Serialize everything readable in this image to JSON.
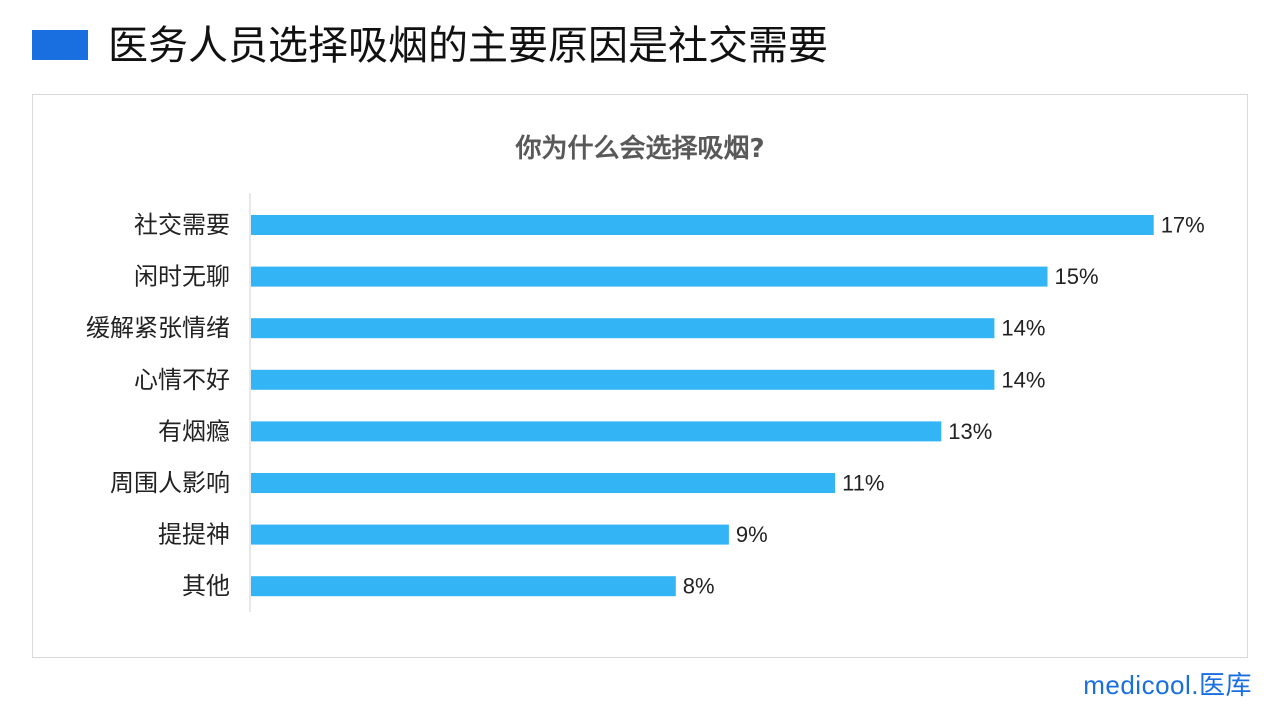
{
  "header": {
    "title": "医务人员选择吸烟的主要原因是社交需要",
    "accent_color": "#1a6fe0"
  },
  "chart_data": {
    "type": "bar",
    "orientation": "horizontal",
    "title": "你为什么会选择吸烟?",
    "xlabel": "",
    "ylabel": "",
    "categories": [
      "社交需要",
      "闲时无聊",
      "缓解紧张情绪",
      "心情不好",
      "有烟瘾",
      "周围人影响",
      "提提神",
      "其他"
    ],
    "values": [
      17,
      15,
      14,
      14,
      13,
      11,
      9,
      8
    ],
    "value_labels": [
      "17%",
      "15%",
      "14%",
      "14%",
      "13%",
      "11%",
      "9%",
      "8%"
    ],
    "unit": "%",
    "bar_color": "#33b5f5",
    "grid": false,
    "legend": "none"
  },
  "footer": {
    "brand": "medicool.医库"
  }
}
